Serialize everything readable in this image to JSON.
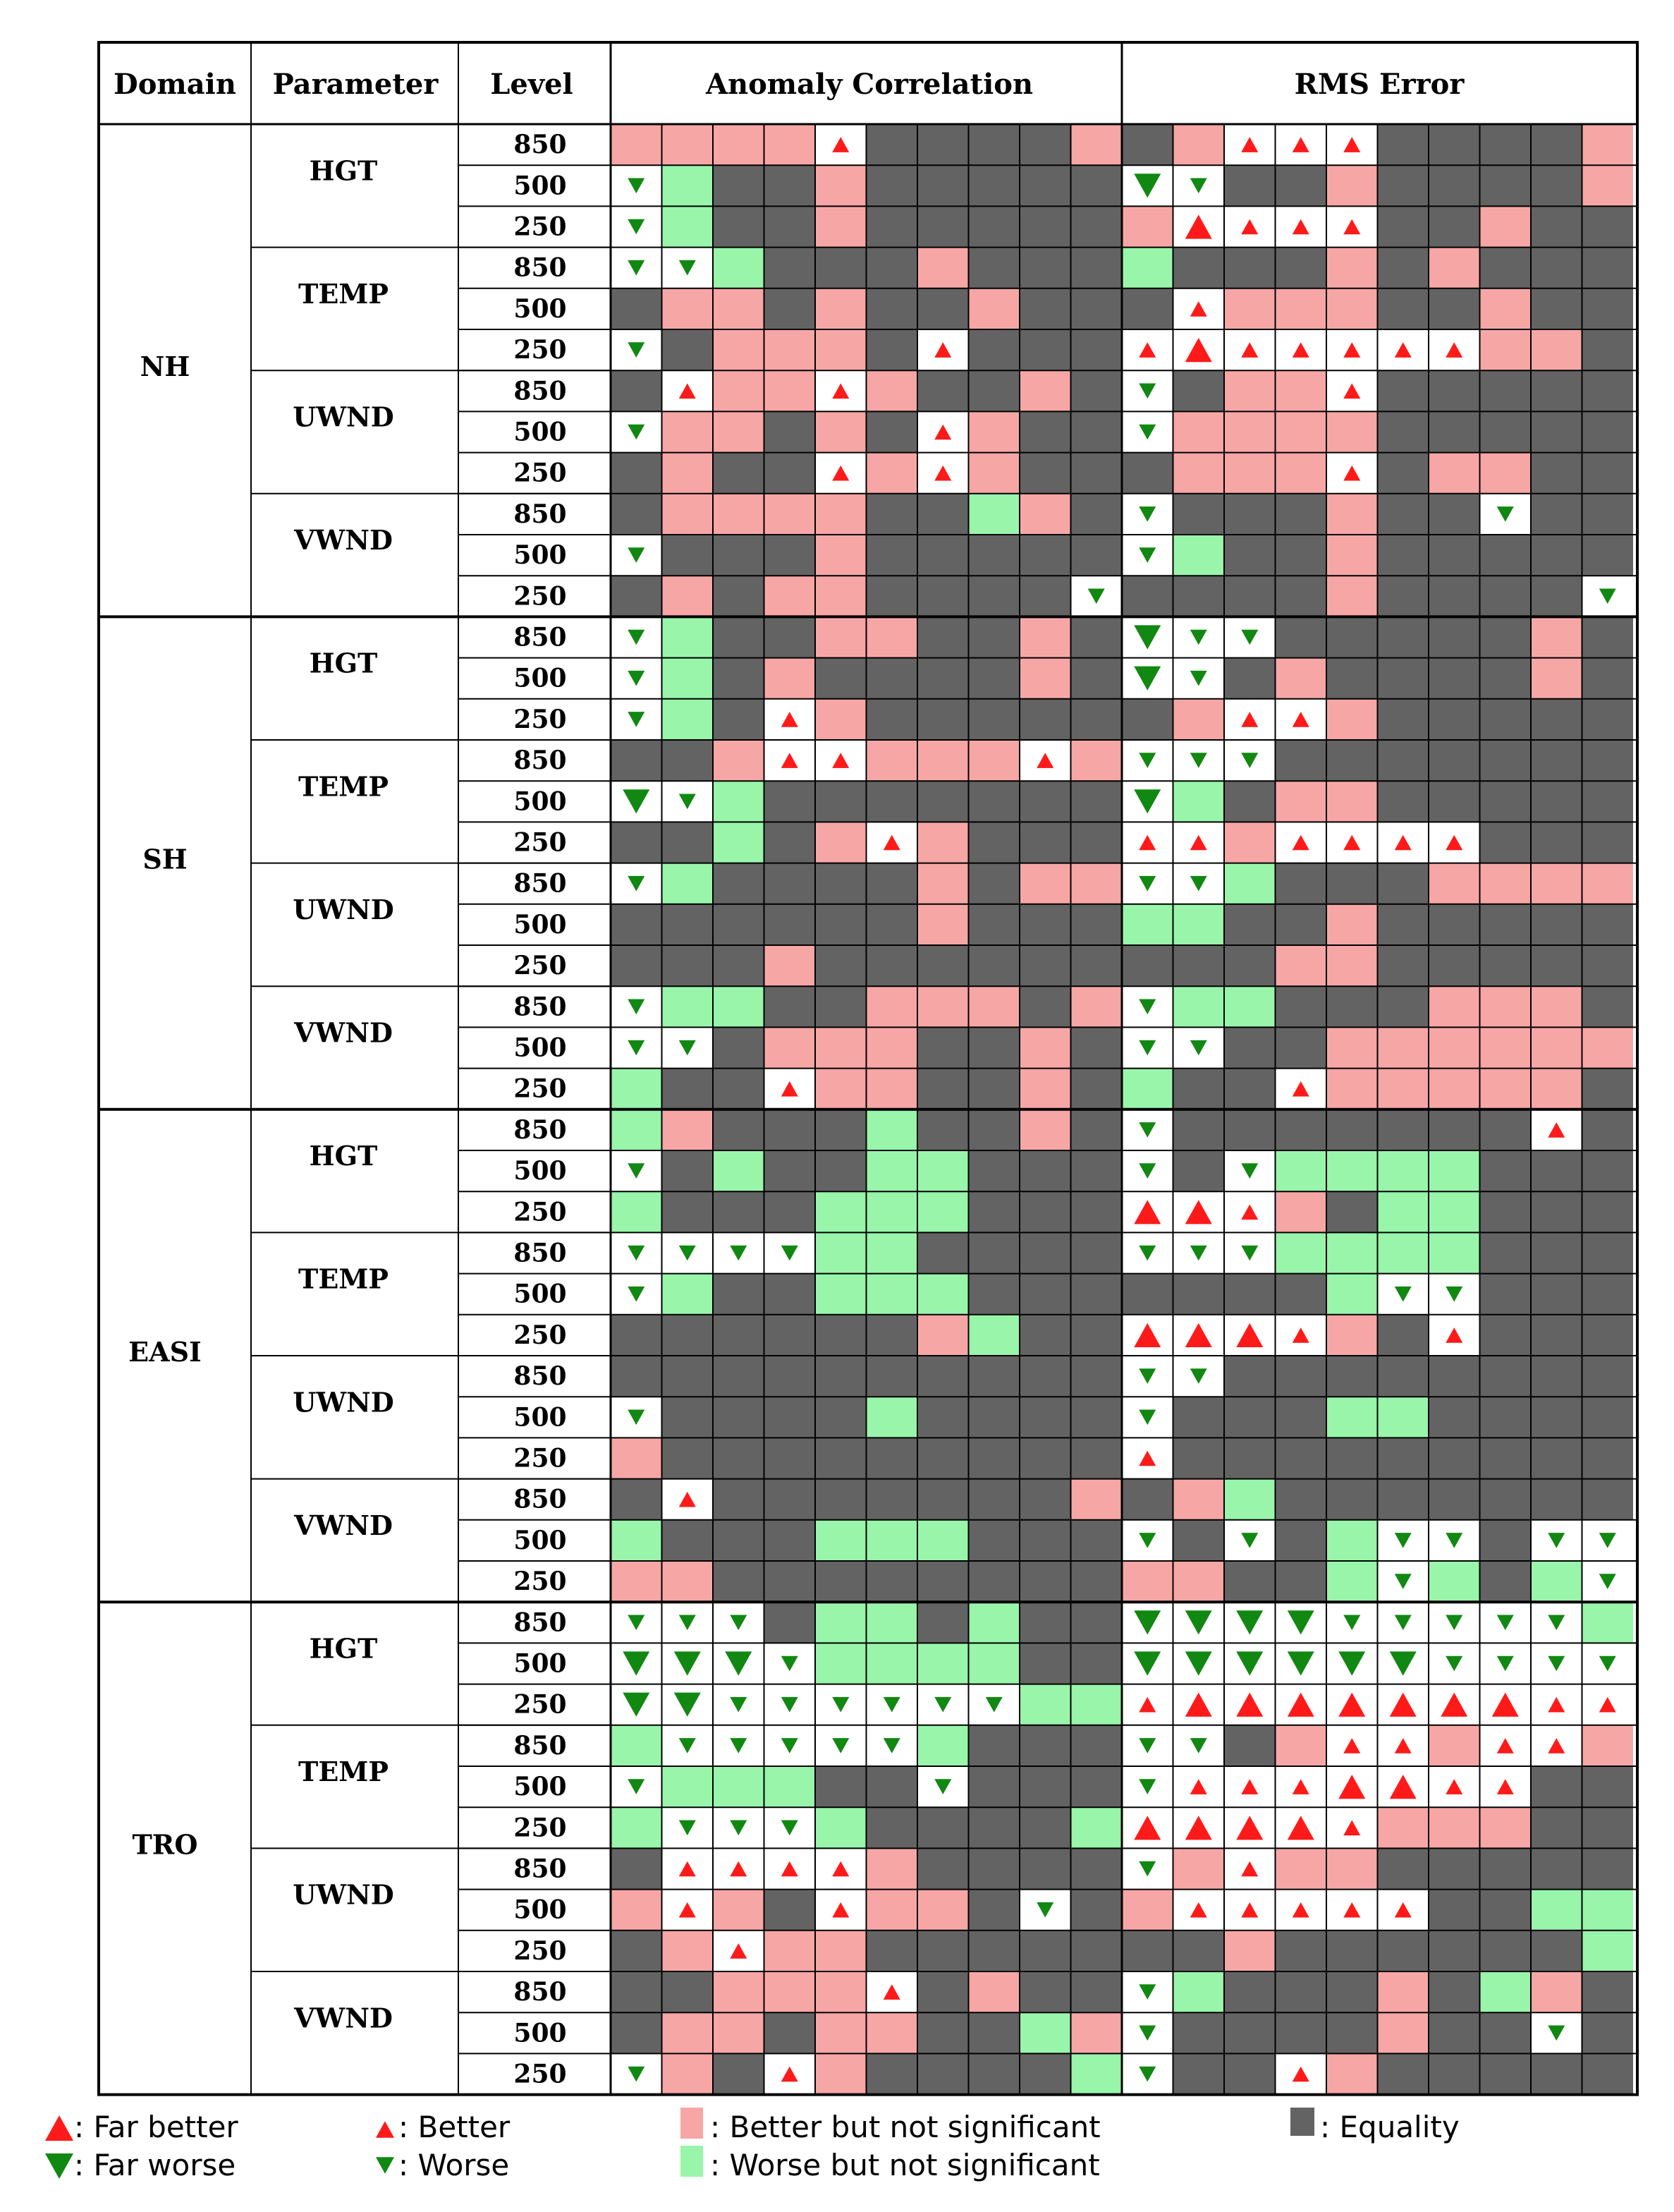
{
  "header": {
    "domain": "Domain",
    "parameter": "Parameter",
    "level": "Level",
    "anomaly_correlation": "Anomaly Correlation",
    "rms_error": "RMS Error"
  },
  "colors": {
    "better_ns": "#f7a6a6",
    "worse_ns": "#98f5aa",
    "equality": "#636363",
    "white": "#ffffff",
    "up_marker": "#ff1a1a",
    "down_marker": "#118811",
    "grid": "#000000"
  },
  "legend": {
    "far_better": ": Far better",
    "far_worse": ": Far worse",
    "better": ": Better",
    "worse": ": Worse",
    "better_ns": ": Better but not significant",
    "worse_ns": ": Worse but not significant",
    "equality": ": Equality"
  },
  "chart_data": {
    "type": "heatmap",
    "code_key": {
      "P": "Better but not significant",
      "G": "Worse but not significant",
      "D": "Equality",
      "u": "Better",
      "U": "Far better",
      "d": "Worse",
      "W": "Far worse"
    },
    "metrics": [
      "Anomaly Correlation",
      "RMS Error"
    ],
    "columns_per_metric": 10,
    "domains": [
      {
        "name": "NH",
        "params": [
          {
            "name": "HGT",
            "levels": [
              {
                "level": "850",
                "ac": "PPPPuDDDDP",
                "rms": "DPuuuDDDDP"
              },
              {
                "level": "500",
                "ac": "dGDDPDDDDD",
                "rms": "WdDDPDDDDP"
              },
              {
                "level": "250",
                "ac": "dGDDPDDDDD",
                "rms": "PUuuuDDPDD"
              }
            ]
          },
          {
            "name": "TEMP",
            "levels": [
              {
                "level": "850",
                "ac": "ddGDDDPDDD",
                "rms": "GDDDPDPDDD"
              },
              {
                "level": "500",
                "ac": "DPPDPDDPDD",
                "rms": "DuPPPDDPDD"
              },
              {
                "level": "250",
                "ac": "dDPPPDuDDD",
                "rms": "uUuuuuuPPD"
              }
            ]
          },
          {
            "name": "UWND",
            "levels": [
              {
                "level": "850",
                "ac": "DuPPuPDDPD",
                "rms": "dDPPuDDDDD"
              },
              {
                "level": "500",
                "ac": "dPPDPDuPDD",
                "rms": "dPPPPDDDDD"
              },
              {
                "level": "250",
                "ac": "DPDDuPuPDD",
                "rms": "DPPPuDPPDD"
              }
            ]
          },
          {
            "name": "VWND",
            "levels": [
              {
                "level": "850",
                "ac": "DPPPPDDGPD",
                "rms": "dDDDPDDdDD"
              },
              {
                "level": "500",
                "ac": "dDDDPDDDDD",
                "rms": "dGDDPDDDDD"
              },
              {
                "level": "250",
                "ac": "DPDPPDDDDd",
                "rms": "DDDDPDDDDd"
              }
            ]
          }
        ]
      },
      {
        "name": "SH",
        "params": [
          {
            "name": "HGT",
            "levels": [
              {
                "level": "850",
                "ac": "dGDDPPDDPD",
                "rms": "WddDDDDDPD"
              },
              {
                "level": "500",
                "ac": "dGDPDDDDPD",
                "rms": "WdDPDDDDPD"
              },
              {
                "level": "250",
                "ac": "dGDuPDDDDD",
                "rms": "DPuuPDDDDD"
              }
            ]
          },
          {
            "name": "TEMP",
            "levels": [
              {
                "level": "850",
                "ac": "DDPuuPPPuP",
                "rms": "dddDDDDDDD"
              },
              {
                "level": "500",
                "ac": "WdGDDDDDDD",
                "rms": "WGDPPDDDDD"
              },
              {
                "level": "250",
                "ac": "DDGDPuPDDD",
                "rms": "uuPuuuuDDD"
              }
            ]
          },
          {
            "name": "UWND",
            "levels": [
              {
                "level": "850",
                "ac": "dGDDDDPDPP",
                "rms": "ddGDDDPPPP"
              },
              {
                "level": "500",
                "ac": "DDDDDDPDDD",
                "rms": "GGDDPDDDDD"
              },
              {
                "level": "250",
                "ac": "DDDPDDDDDD",
                "rms": "DDDPPDDDDD"
              }
            ]
          },
          {
            "name": "VWND",
            "levels": [
              {
                "level": "850",
                "ac": "dGGDDPPPDP",
                "rms": "dGGDDDPPPD"
              },
              {
                "level": "500",
                "ac": "ddDPPPDDPD",
                "rms": "ddDDPPPPPP"
              },
              {
                "level": "250",
                "ac": "GDDuPPDDPD",
                "rms": "GDDuPPPPPD"
              }
            ]
          }
        ]
      },
      {
        "name": "EASI",
        "params": [
          {
            "name": "HGT",
            "levels": [
              {
                "level": "850",
                "ac": "GPDDDGDDPD",
                "rms": "dDDDDDDDuD"
              },
              {
                "level": "500",
                "ac": "dDGDDGGDDD",
                "rms": "dDdGGGGDDD"
              },
              {
                "level": "250",
                "ac": "GDDDGGGDDD",
                "rms": "UUuPDGGDDD"
              }
            ]
          },
          {
            "name": "TEMP",
            "levels": [
              {
                "level": "850",
                "ac": "ddddGGDDDD",
                "rms": "dddGGGGDDD"
              },
              {
                "level": "500",
                "ac": "dGDDGGGDDD",
                "rms": "DDDDGddDDD"
              },
              {
                "level": "250",
                "ac": "DDDDDDPGDD",
                "rms": "UUUuPDuDDD"
              }
            ]
          },
          {
            "name": "UWND",
            "levels": [
              {
                "level": "850",
                "ac": "DDDDDDDDDD",
                "rms": "ddDDDDDDDD"
              },
              {
                "level": "500",
                "ac": "dDDDDGDDDD",
                "rms": "dDDDGGDDDD"
              },
              {
                "level": "250",
                "ac": "PDDDDDDDDD",
                "rms": "uDDDDDDDDD"
              }
            ]
          },
          {
            "name": "VWND",
            "levels": [
              {
                "level": "850",
                "ac": "DuDDDDDDDP",
                "rms": "DPGDDDDDDD"
              },
              {
                "level": "500",
                "ac": "GDDDGGGDDD",
                "rms": "dDdDGddDdd"
              },
              {
                "level": "250",
                "ac": "PPDDDDDDDD",
                "rms": "PPDDGdGDGd"
              }
            ]
          }
        ]
      },
      {
        "name": "TRO",
        "params": [
          {
            "name": "HGT",
            "levels": [
              {
                "level": "850",
                "ac": "dddDGGDGDD",
                "rms": "WWWWdddddG"
              },
              {
                "level": "500",
                "ac": "WWWdGGGGDD",
                "rms": "WWWWWWdddd"
              },
              {
                "level": "250",
                "ac": "WWddddddGG",
                "rms": "uUUUUUUUuu"
              }
            ]
          },
          {
            "name": "TEMP",
            "levels": [
              {
                "level": "850",
                "ac": "GdddddGDDD",
                "rms": "ddDPuuPuuP"
              },
              {
                "level": "500",
                "ac": "dGGGDDdDDD",
                "rms": "duuuUUuuDD"
              },
              {
                "level": "250",
                "ac": "GdddGDDDDG",
                "rms": "UUUUuPPPDD"
              }
            ]
          },
          {
            "name": "UWND",
            "levels": [
              {
                "level": "850",
                "ac": "DuuuuPDDDD",
                "rms": "dPuPPDDDDD"
              },
              {
                "level": "500",
                "ac": "PuPDuPPDdD",
                "rms": "PuuuuuDDGG"
              },
              {
                "level": "250",
                "ac": "DPuPPDDDDD",
                "rms": "DDPDDDDDDG"
              }
            ]
          },
          {
            "name": "VWND",
            "levels": [
              {
                "level": "850",
                "ac": "DDPPPuDPDD",
                "rms": "dGDDDPDGPD"
              },
              {
                "level": "500",
                "ac": "DPPDPPDDGP",
                "rms": "dDDDDPDDdD"
              },
              {
                "level": "250",
                "ac": "dPDuPDDDDG",
                "rms": "dDDuPDDDDD"
              }
            ]
          }
        ]
      }
    ]
  }
}
